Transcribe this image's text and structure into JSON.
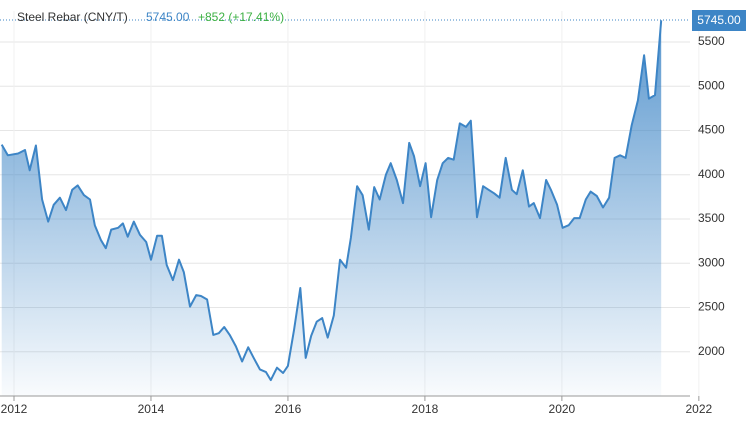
{
  "chart_data": {
    "type": "area",
    "title": "Steel Rebar (CNY/T)",
    "price": "5745.00",
    "change": "+852 (+17.41%)",
    "series": [
      {
        "name": "Steel Rebar (CNY/T)",
        "color": "#3d85c6",
        "x": [
          2011.82,
          2011.91,
          2012.06,
          2012.16,
          2012.23,
          2012.32,
          2012.41,
          2012.5,
          2012.58,
          2012.67,
          2012.76,
          2012.85,
          2012.93,
          2013.02,
          2013.11,
          2013.18,
          2013.27,
          2013.34,
          2013.42,
          2013.52,
          2013.59,
          2013.66,
          2013.75,
          2013.84,
          2013.93,
          2014.0,
          2014.09,
          2014.16,
          2014.23,
          2014.32,
          2014.41,
          2014.48,
          2014.57,
          2014.66,
          2014.73,
          2014.82,
          2014.91,
          2014.99,
          2015.07,
          2015.15,
          2015.24,
          2015.33,
          2015.42,
          2015.5,
          2015.59,
          2015.68,
          2015.75,
          2015.84,
          2015.93,
          2016.0,
          2016.09,
          2016.18,
          2016.26,
          2016.34,
          2016.42,
          2016.5,
          2016.58,
          2016.67,
          2016.76,
          2016.85,
          2016.92,
          2017.01,
          2017.09,
          2017.18,
          2017.26,
          2017.34,
          2017.43,
          2017.5,
          2017.59,
          2017.68,
          2017.77,
          2017.84,
          2017.93,
          2018.01,
          2018.09,
          2018.18,
          2018.26,
          2018.34,
          2018.42,
          2018.51,
          2018.6,
          2018.67,
          2018.76,
          2018.85,
          2018.93,
          2019.01,
          2019.09,
          2019.18,
          2019.27,
          2019.34,
          2019.43,
          2019.52,
          2019.59,
          2019.68,
          2019.77,
          2019.84,
          2019.93,
          2020.01,
          2020.1,
          2020.18,
          2020.26,
          2020.35,
          2020.42,
          2020.51,
          2020.6,
          2020.69,
          2020.77,
          2020.85,
          2020.93,
          2021.02,
          2021.11,
          2021.2,
          2021.27,
          2021.36,
          2021.45
        ],
        "values": [
          4340,
          4220,
          4240,
          4280,
          4050,
          4330,
          3720,
          3470,
          3660,
          3740,
          3600,
          3830,
          3880,
          3770,
          3720,
          3430,
          3260,
          3170,
          3380,
          3400,
          3450,
          3300,
          3470,
          3320,
          3240,
          3040,
          3310,
          3310,
          2980,
          2810,
          3040,
          2900,
          2510,
          2640,
          2630,
          2590,
          2190,
          2210,
          2280,
          2190,
          2060,
          1890,
          2050,
          1930,
          1800,
          1770,
          1680,
          1820,
          1760,
          1840,
          2250,
          2720,
          1930,
          2180,
          2340,
          2380,
          2160,
          2410,
          3040,
          2950,
          3290,
          3870,
          3770,
          3380,
          3860,
          3720,
          4000,
          4130,
          3940,
          3680,
          4360,
          4210,
          3870,
          4130,
          3520,
          3940,
          4130,
          4190,
          4170,
          4580,
          4540,
          4610,
          3520,
          3870,
          3830,
          3790,
          3740,
          4190,
          3830,
          3780,
          4050,
          3640,
          3680,
          3510,
          3940,
          3830,
          3660,
          3400,
          3430,
          3510,
          3510,
          3720,
          3810,
          3760,
          3630,
          3740,
          4190,
          4220,
          4190,
          4560,
          4840,
          5350,
          4860,
          4900,
          5745
        ]
      }
    ],
    "xlim": [
      2011.8,
      2021.9
    ],
    "xticks": [
      2012,
      2014,
      2016,
      2018,
      2020,
      2022
    ],
    "ylim": [
      1500,
      5850
    ],
    "yticks": [
      2000,
      2500,
      3000,
      3500,
      4000,
      4500,
      5000,
      5500
    ],
    "grid": true
  }
}
